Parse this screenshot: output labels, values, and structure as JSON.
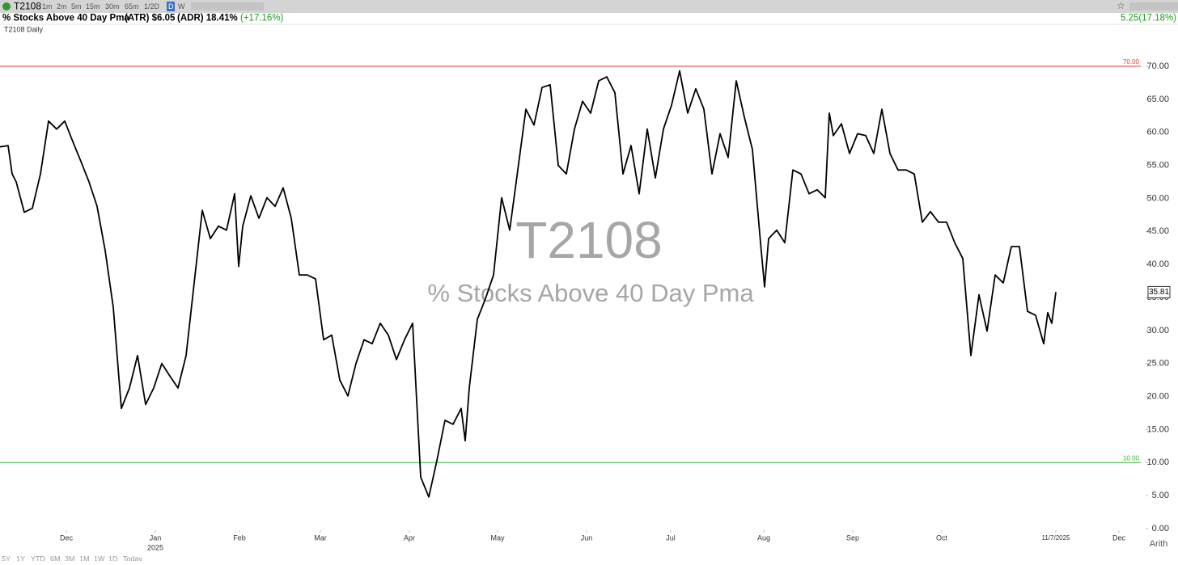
{
  "toolbar": {
    "symbol": "T2108",
    "intervals": [
      "1m",
      "2m",
      "5m",
      "15m",
      "30m",
      "65m",
      "1/2D",
      "D",
      "W"
    ],
    "active_interval": 7
  },
  "header": {
    "name": "% Stocks Above 40 Day Pma",
    "atr": "(ATR) $6.05",
    "adr": "(ADR) 18.41%",
    "change": "(+17.16%)",
    "last_change": "5.25(17.18%)"
  },
  "pane_label": "T2108 Daily",
  "bottom_bar": {
    "ranges": [
      "5Y",
      "1Y",
      "YTD",
      "6M",
      "3M",
      "1M",
      "1W",
      "1D",
      "Today"
    ],
    "scale": "Arith"
  },
  "chart_data": {
    "type": "line",
    "watermark": "T2108",
    "watermark_subtitle": "% Stocks Above 40 Day Pma",
    "x": [
      0,
      2,
      3,
      4,
      6,
      8,
      10,
      12,
      14,
      16,
      18,
      20,
      22,
      24,
      26,
      28,
      30,
      32,
      34,
      36,
      38,
      40,
      42,
      44,
      46,
      48,
      50,
      52,
      54,
      56,
      58,
      59,
      60,
      62,
      64,
      66,
      68,
      70,
      72,
      74,
      76,
      78,
      80,
      82,
      84,
      86,
      88,
      90,
      92,
      94,
      96,
      98,
      100,
      102,
      104,
      106,
      108,
      110,
      112,
      114,
      115,
      116,
      118,
      120,
      122,
      124,
      126,
      128,
      130,
      132,
      134,
      136,
      138,
      140,
      142,
      144,
      146,
      148,
      150,
      152,
      154,
      156,
      158,
      160,
      162,
      164,
      166,
      168,
      170,
      172,
      174,
      176,
      178,
      180,
      182,
      184,
      186,
      188,
      189,
      190,
      192,
      194,
      196,
      198,
      200,
      202,
      204,
      205,
      206,
      208,
      210,
      212,
      214,
      216,
      218,
      220,
      222,
      224,
      226,
      228,
      230,
      232,
      234,
      236,
      238,
      240,
      242,
      244,
      246,
      248,
      250,
      252,
      254,
      256,
      258,
      259,
      260,
      261
    ],
    "values": [
      57.8,
      58.0,
      53.7,
      52.5,
      47.9,
      48.5,
      53.7,
      61.7,
      60.5,
      61.7,
      58.6,
      55.6,
      52.5,
      48.8,
      42.1,
      33.5,
      18.2,
      21.3,
      26.2,
      18.8,
      21.3,
      25.0,
      23.1,
      21.3,
      26.2,
      37.2,
      48.2,
      43.9,
      45.8,
      45.2,
      50.7,
      39.7,
      45.8,
      50.4,
      47.0,
      50.1,
      48.8,
      51.6,
      47.0,
      38.4,
      38.4,
      37.8,
      28.6,
      29.3,
      22.5,
      20.1,
      25.0,
      28.6,
      28.0,
      31.1,
      29.3,
      25.6,
      28.6,
      31.1,
      7.8,
      4.8,
      10.3,
      16.4,
      15.8,
      18.2,
      13.3,
      21.3,
      31.7,
      34.8,
      38.4,
      50.1,
      45.2,
      54.3,
      63.5,
      61.1,
      66.8,
      67.2,
      55.0,
      53.7,
      60.5,
      64.7,
      62.9,
      67.8,
      68.4,
      66.0,
      53.7,
      58.0,
      50.7,
      60.5,
      53.1,
      60.5,
      64.1,
      69.3,
      62.9,
      66.6,
      63.5,
      53.7,
      59.8,
      56.2,
      67.8,
      62.3,
      57.4,
      43.3,
      36.6,
      43.9,
      45.2,
      43.3,
      54.3,
      53.7,
      50.7,
      51.3,
      50.1,
      62.9,
      59.5,
      61.3,
      56.8,
      59.8,
      59.5,
      56.8,
      63.5,
      56.8,
      54.3,
      54.3,
      53.7,
      46.4,
      48.0,
      46.4,
      46.4,
      43.3,
      40.9,
      26.2,
      35.4,
      29.9,
      38.4,
      37.2,
      42.7,
      42.7,
      32.9,
      32.3,
      28.0,
      32.7,
      31.1,
      35.81
    ],
    "color": "#000000",
    "xlim": [
      0,
      282
    ],
    "xticks": [
      {
        "value": 16.4,
        "label": "Dec"
      },
      {
        "value": 38.4,
        "label": "Jan"
      },
      {
        "value": 59.2,
        "label": "Feb"
      },
      {
        "value": 79.2,
        "label": "Mar"
      },
      {
        "value": 101.2,
        "label": "Apr"
      },
      {
        "value": 123,
        "label": "May"
      },
      {
        "value": 145,
        "label": "Jun"
      },
      {
        "value": 165.8,
        "label": "Jul"
      },
      {
        "value": 188.8,
        "label": "Aug"
      },
      {
        "value": 210.8,
        "label": "Sep"
      },
      {
        "value": 232.8,
        "label": "Oct"
      },
      {
        "value": 261,
        "label": "11/7/2025"
      },
      {
        "value": 276.6,
        "label": "Dec"
      }
    ],
    "x_year_label": "2025",
    "ylim": [
      0,
      76
    ],
    "yticks": [
      {
        "value": 0,
        "label": "0.00"
      },
      {
        "value": 5,
        "label": "5.00"
      },
      {
        "value": 10,
        "label": "10.00"
      },
      {
        "value": 15,
        "label": "15.00"
      },
      {
        "value": 20,
        "label": "20.00"
      },
      {
        "value": 25,
        "label": "25.00"
      },
      {
        "value": 30,
        "label": "30.00"
      },
      {
        "value": 35,
        "label": "35.00"
      },
      {
        "value": 40,
        "label": "40.00"
      },
      {
        "value": 45,
        "label": "45.00"
      },
      {
        "value": 50,
        "label": "50.00"
      },
      {
        "value": 55,
        "label": "55.00"
      },
      {
        "value": 60,
        "label": "60.00"
      },
      {
        "value": 65,
        "label": "65.00"
      },
      {
        "value": 70,
        "label": "70.00"
      }
    ],
    "reference_lines": [
      {
        "value": 70,
        "label": "70.00",
        "color": "#e03a3a"
      },
      {
        "value": 10,
        "label": "10.00",
        "color": "#2fb52f"
      }
    ]
  }
}
